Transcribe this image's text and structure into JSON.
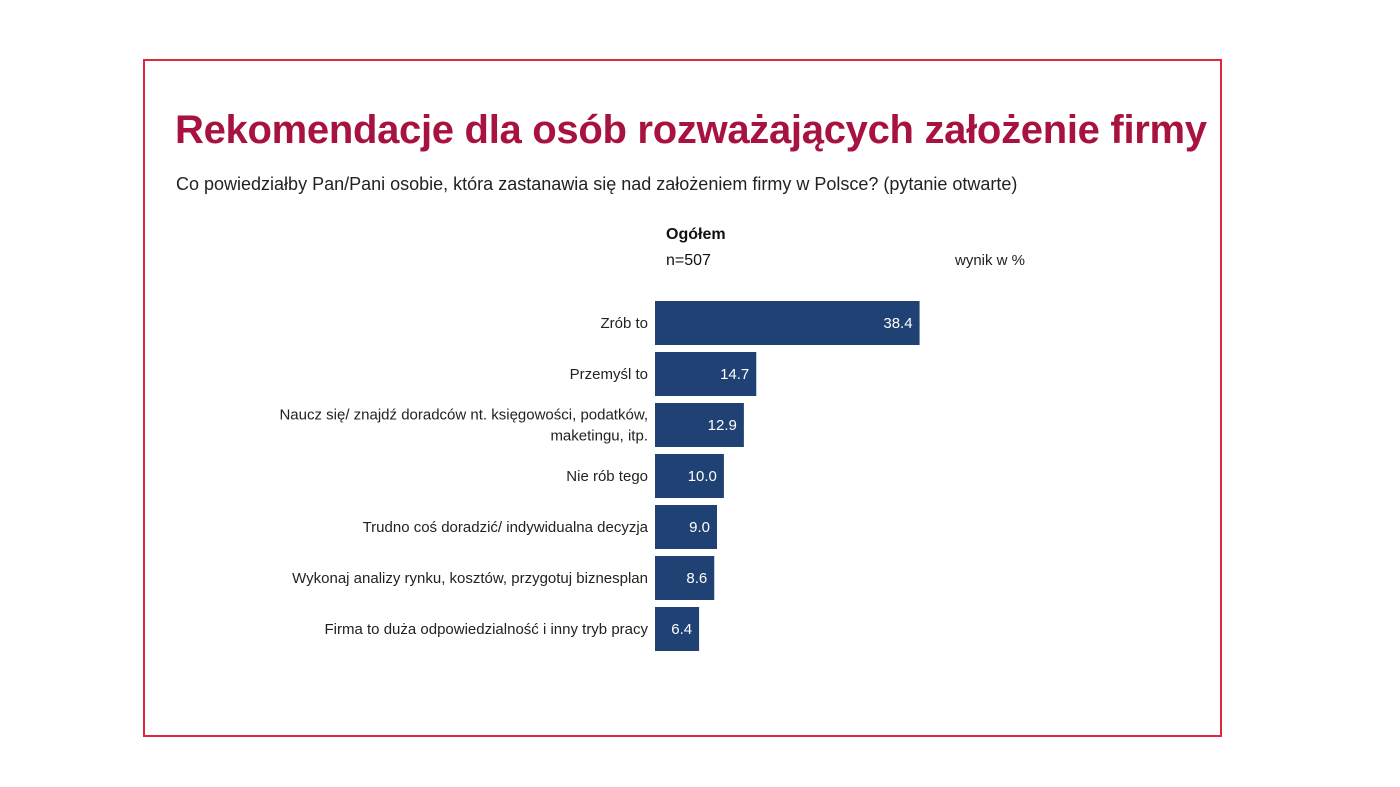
{
  "header": {
    "title": "Rekomendacje dla osób rozważających założenie firmy",
    "subtitle": "Co powiedziałby Pan/Pani osobie, która zastanawia się nad założeniem firmy w Polsce? (pytanie otwarte)"
  },
  "legend": {
    "group_label": "Ogółem",
    "sample_size": "n=507",
    "unit_note": "wynik w %"
  },
  "colors": {
    "title": "#a8123e",
    "bar": "#1f4173",
    "frame": "#e0283a"
  },
  "chart_data": {
    "type": "bar",
    "orientation": "horizontal",
    "categories": [
      "Zrób to",
      "Przemyśl to",
      "Naucz się/ znajdź doradców nt. księgowości, podatków, maketingu, itp.",
      "Nie rób tego",
      "Trudno coś doradzić/ indywidualna decyzja",
      "Wykonaj analizy rynku, kosztów, przygotuj biznesplan",
      "Firma to duża odpowiedzialność i inny tryb pracy"
    ],
    "category_lines": [
      [
        "Zrób to"
      ],
      [
        "Przemyśl to"
      ],
      [
        "Naucz się/ znajdź doradców nt. księgowości, podatków,",
        "maketingu, itp."
      ],
      [
        "Nie rób tego"
      ],
      [
        "Trudno coś doradzić/ indywidualna decyzja"
      ],
      [
        "Wykonaj analizy rynku, kosztów, przygotuj biznesplan"
      ],
      [
        "Firma to duża odpowiedzialność i inny tryb pracy"
      ]
    ],
    "values": [
      38.4,
      14.7,
      12.9,
      10.0,
      9.0,
      8.6,
      6.4
    ],
    "value_labels": [
      "38.4",
      "14.7",
      "12.9",
      "10.0",
      "9.0",
      "8.6",
      "6.4"
    ],
    "xlim": [
      0,
      50
    ],
    "grid": false,
    "legend": "none"
  }
}
